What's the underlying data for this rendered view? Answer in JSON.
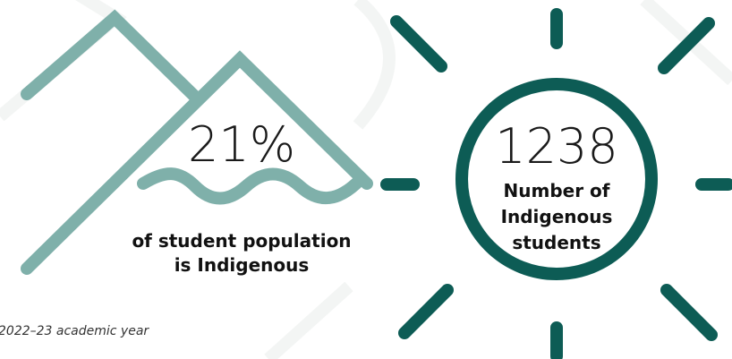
{
  "stats": [
    {
      "value": "21%",
      "label_lines": [
        "of student population",
        "is Indigenous"
      ]
    },
    {
      "value": "1238",
      "label_lines": [
        "Number of",
        "Indigenous",
        "students"
      ]
    }
  ],
  "footnote": "2022–23 academic year"
}
